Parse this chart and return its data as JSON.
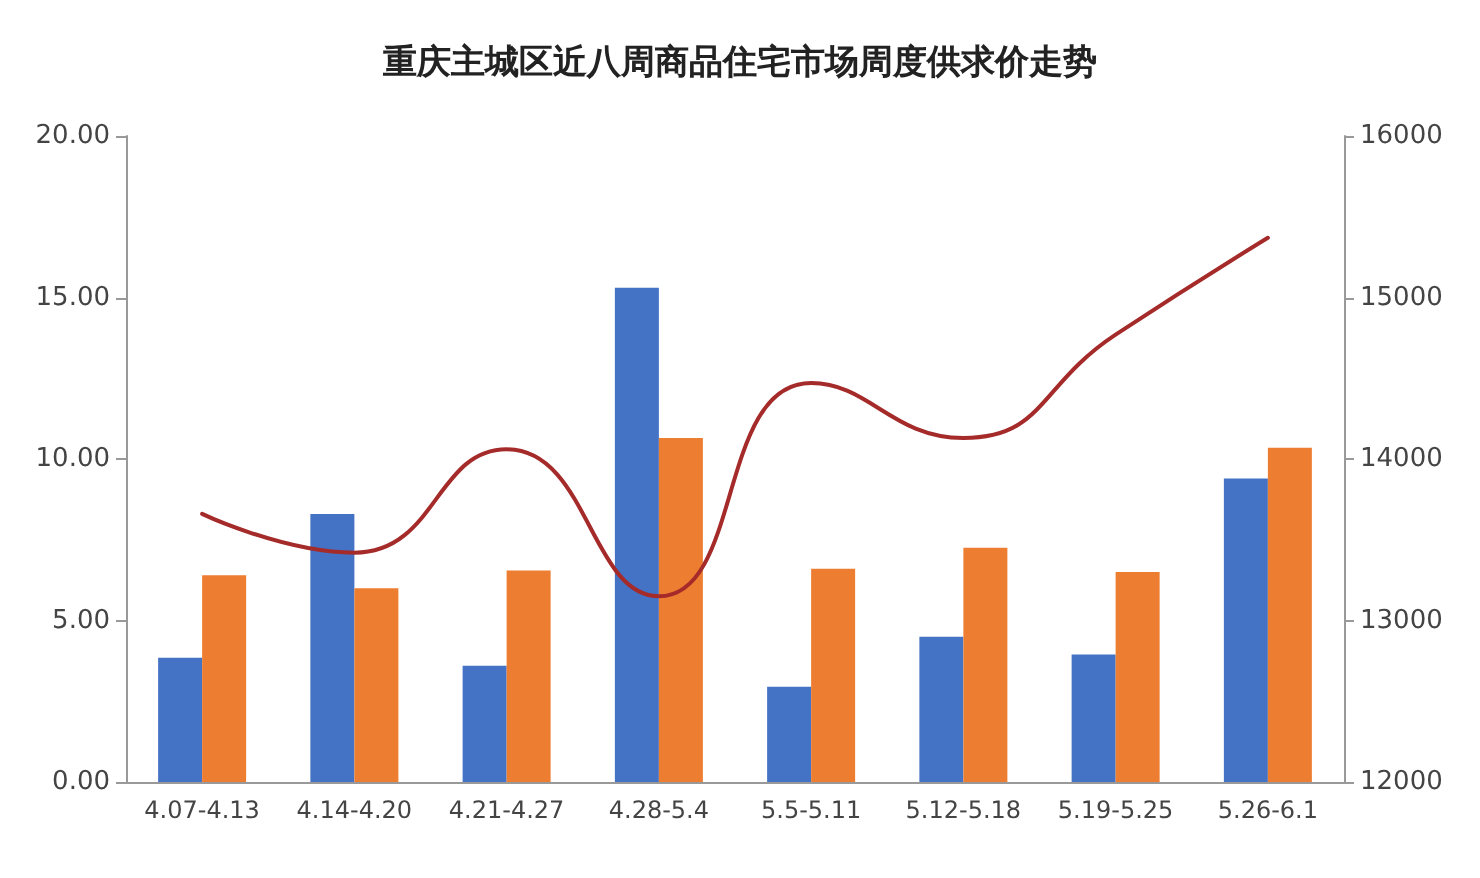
{
  "chart_data": {
    "type": "bar",
    "title": "重庆主城区近八周商品住宅市场周度供求价走势",
    "categories": [
      "4.07-4.13",
      "4.14-4.20",
      "4.21-4.27",
      "4.28-5.4",
      "5.5-5.11",
      "5.12-5.18",
      "5.19-5.25",
      "5.26-6.1"
    ],
    "series": [
      {
        "color": "#4472c4",
        "values": [
          3.85,
          8.3,
          3.6,
          15.3,
          2.95,
          4.5,
          3.95,
          9.4
        ]
      },
      {
        "color": "#ed7d31",
        "values": [
          6.4,
          6.0,
          6.55,
          10.65,
          6.6,
          7.25,
          6.5,
          10.35
        ]
      },
      {
        "type": "line",
        "axis": "y2",
        "color": "#a52a2a",
        "values": [
          13660,
          13420,
          14060,
          13150,
          14470,
          14130,
          14770,
          15370
        ]
      }
    ],
    "ylim": [
      0,
      20
    ],
    "yticks": [
      {
        "value": 0,
        "label": "0.00"
      },
      {
        "value": 5,
        "label": "5.00"
      },
      {
        "value": 10,
        "label": "10.00"
      },
      {
        "value": 15,
        "label": "15.00"
      },
      {
        "value": 20,
        "label": "20.00"
      }
    ],
    "y2lim": [
      12000,
      16000
    ],
    "y2ticks": [
      12000,
      13000,
      14000,
      15000,
      16000
    ],
    "grid": false,
    "marker": "none",
    "line_style": "solid"
  }
}
